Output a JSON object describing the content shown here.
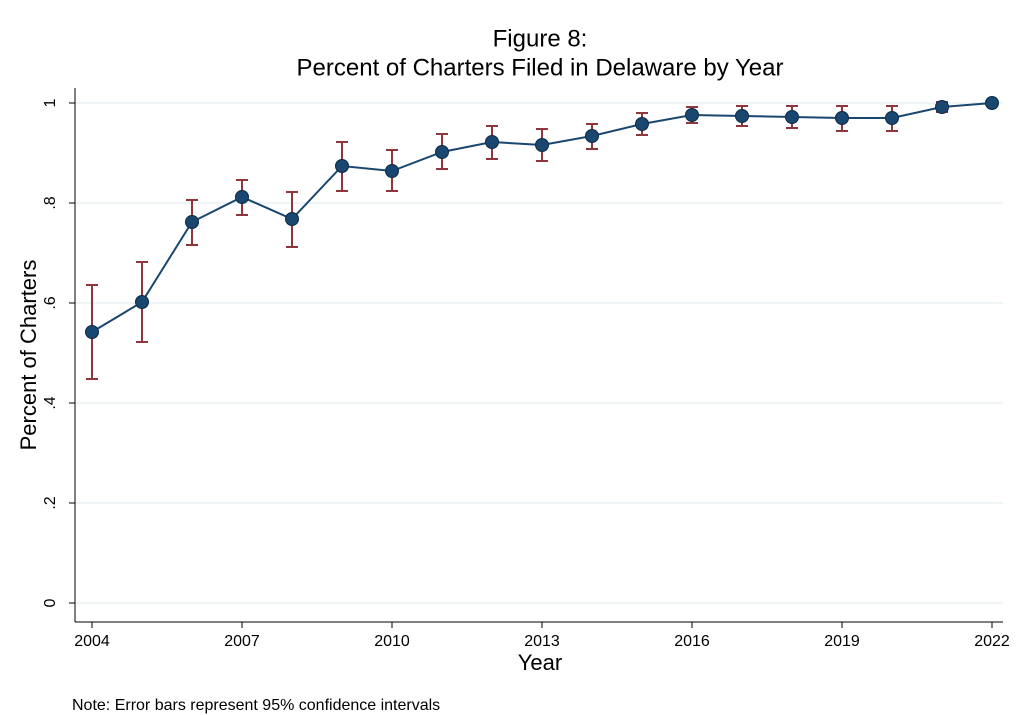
{
  "chart_data": {
    "type": "line",
    "title": [
      "Figure 8:",
      "Percent of Charters Filed in Delaware by Year"
    ],
    "x_label": "Year",
    "y_label": "Percent of Charters",
    "note": "Note: Error bars represent 95% confidence intervals",
    "x": [
      2004,
      2005,
      2006,
      2007,
      2008,
      2009,
      2010,
      2011,
      2012,
      2013,
      2014,
      2015,
      2016,
      2017,
      2018,
      2019,
      2020,
      2021,
      2022
    ],
    "series": [
      {
        "color": "#1a476f",
        "error_color": "#90353b",
        "values": [
          0.542,
          0.602,
          0.762,
          0.812,
          0.768,
          0.874,
          0.864,
          0.902,
          0.922,
          0.916,
          0.934,
          0.958,
          0.976,
          0.974,
          0.972,
          0.97,
          0.97,
          0.992,
          1.0
        ],
        "ci_lower": [
          0.448,
          0.522,
          0.716,
          0.776,
          0.712,
          0.824,
          0.824,
          0.868,
          0.888,
          0.884,
          0.908,
          0.936,
          0.96,
          0.954,
          0.95,
          0.944,
          0.944,
          0.982,
          1.0
        ],
        "ci_upper": [
          0.636,
          0.682,
          0.806,
          0.846,
          0.822,
          0.922,
          0.906,
          0.938,
          0.954,
          0.948,
          0.958,
          0.98,
          0.992,
          0.994,
          0.994,
          0.994,
          0.994,
          1.002,
          1.0
        ]
      }
    ],
    "xlim": [
      2003.66,
      2022.22
    ],
    "xticks": [
      2004,
      2007,
      2010,
      2013,
      2016,
      2019,
      2022
    ],
    "ylim": [
      -0.038,
      1.03
    ],
    "yticks": [
      0,
      {
        "value": 0.2,
        "label": ".2"
      },
      {
        "value": 0.4,
        "label": ".4"
      },
      {
        "value": 0.6,
        "label": ".6"
      },
      {
        "value": 0.8,
        "label": ".8"
      },
      1
    ],
    "grid": true
  }
}
